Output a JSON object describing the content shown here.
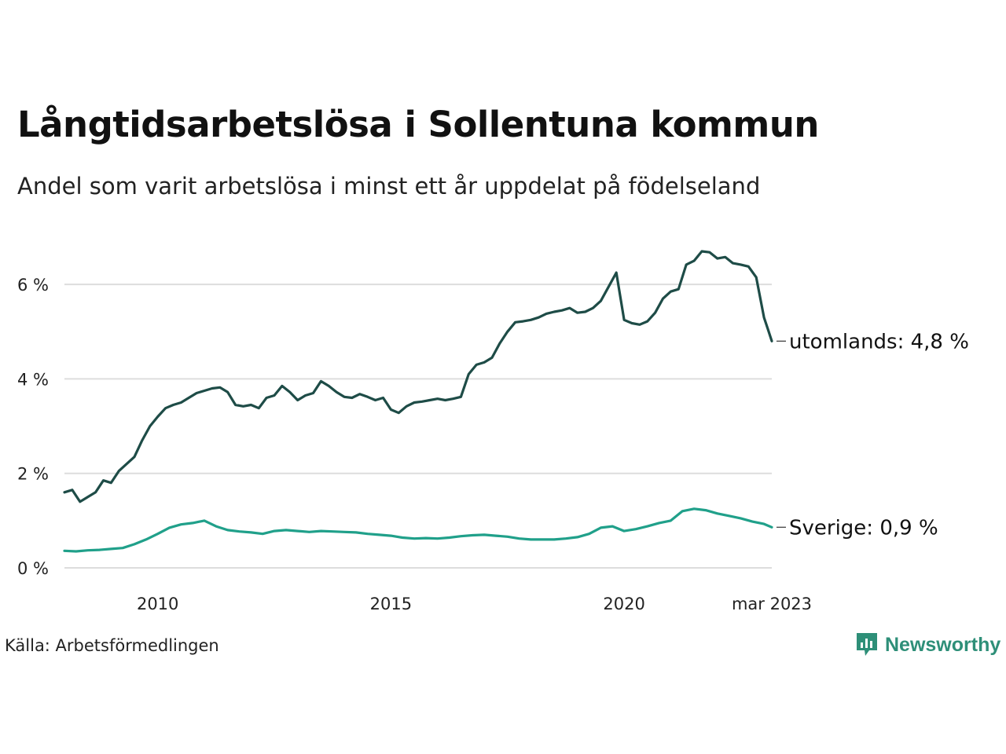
{
  "title": "Långtidsarbetslösa i Sollentuna kommun",
  "subtitle": "Andel som varit arbetslösa i minst ett år uppdelat på födelseland",
  "source": "Källa: Arbetsförmedlingen",
  "brand": {
    "name": "Newsworthy",
    "icon": "newsworthy-logo-icon",
    "color": "#2e8f78"
  },
  "chart_data": {
    "type": "line",
    "title": "Långtidsarbetslösa i Sollentuna kommun",
    "subtitle": "Andel som varit arbetslösa i minst ett år uppdelat på födelseland",
    "xlabel": "",
    "ylabel": "",
    "xlim": [
      "2008-01",
      "2023-03"
    ],
    "ylim": [
      0,
      7
    ],
    "x_ticks": [
      {
        "label": "2010",
        "x": "2010-01"
      },
      {
        "label": "2015",
        "x": "2015-01"
      },
      {
        "label": "2020",
        "x": "2020-01"
      },
      {
        "label": "mar 2023",
        "x": "2023-03"
      }
    ],
    "y_ticks": [
      {
        "label": "0 %",
        "value": 0
      },
      {
        "label": "2 %",
        "value": 2
      },
      {
        "label": "4 %",
        "value": 4
      },
      {
        "label": "6 %",
        "value": 6
      }
    ],
    "grid": true,
    "legend": "none",
    "series": [
      {
        "key": "utomlands",
        "end_label": "utomlands: 4,8 %",
        "color": "#1e4c47",
        "points": [
          [
            "2008-01",
            1.6
          ],
          [
            "2008-03",
            1.65
          ],
          [
            "2008-05",
            1.4
          ],
          [
            "2008-07",
            1.5
          ],
          [
            "2008-09",
            1.6
          ],
          [
            "2008-11",
            1.85
          ],
          [
            "2009-01",
            1.8
          ],
          [
            "2009-03",
            2.05
          ],
          [
            "2009-05",
            2.2
          ],
          [
            "2009-07",
            2.35
          ],
          [
            "2009-09",
            2.7
          ],
          [
            "2009-11",
            3.0
          ],
          [
            "2010-01",
            3.2
          ],
          [
            "2010-03",
            3.38
          ],
          [
            "2010-05",
            3.45
          ],
          [
            "2010-07",
            3.5
          ],
          [
            "2010-09",
            3.6
          ],
          [
            "2010-11",
            3.7
          ],
          [
            "2011-01",
            3.75
          ],
          [
            "2011-03",
            3.8
          ],
          [
            "2011-05",
            3.82
          ],
          [
            "2011-07",
            3.72
          ],
          [
            "2011-09",
            3.45
          ],
          [
            "2011-11",
            3.42
          ],
          [
            "2012-01",
            3.45
          ],
          [
            "2012-03",
            3.38
          ],
          [
            "2012-05",
            3.6
          ],
          [
            "2012-07",
            3.65
          ],
          [
            "2012-09",
            3.85
          ],
          [
            "2012-11",
            3.72
          ],
          [
            "2013-01",
            3.55
          ],
          [
            "2013-03",
            3.65
          ],
          [
            "2013-05",
            3.7
          ],
          [
            "2013-07",
            3.95
          ],
          [
            "2013-09",
            3.85
          ],
          [
            "2013-11",
            3.72
          ],
          [
            "2014-01",
            3.62
          ],
          [
            "2014-03",
            3.6
          ],
          [
            "2014-05",
            3.68
          ],
          [
            "2014-07",
            3.62
          ],
          [
            "2014-09",
            3.55
          ],
          [
            "2014-11",
            3.6
          ],
          [
            "2015-01",
            3.35
          ],
          [
            "2015-03",
            3.28
          ],
          [
            "2015-05",
            3.42
          ],
          [
            "2015-07",
            3.5
          ],
          [
            "2015-09",
            3.52
          ],
          [
            "2015-11",
            3.55
          ],
          [
            "2016-01",
            3.58
          ],
          [
            "2016-03",
            3.55
          ],
          [
            "2016-05",
            3.58
          ],
          [
            "2016-07",
            3.62
          ],
          [
            "2016-09",
            4.1
          ],
          [
            "2016-11",
            4.3
          ],
          [
            "2017-01",
            4.35
          ],
          [
            "2017-03",
            4.45
          ],
          [
            "2017-05",
            4.75
          ],
          [
            "2017-07",
            5.0
          ],
          [
            "2017-09",
            5.2
          ],
          [
            "2017-11",
            5.22
          ],
          [
            "2018-01",
            5.25
          ],
          [
            "2018-03",
            5.3
          ],
          [
            "2018-05",
            5.38
          ],
          [
            "2018-07",
            5.42
          ],
          [
            "2018-09",
            5.45
          ],
          [
            "2018-11",
            5.5
          ],
          [
            "2019-01",
            5.4
          ],
          [
            "2019-03",
            5.42
          ],
          [
            "2019-05",
            5.5
          ],
          [
            "2019-07",
            5.65
          ],
          [
            "2019-09",
            5.95
          ],
          [
            "2019-11",
            6.25
          ],
          [
            "2020-01",
            5.25
          ],
          [
            "2020-03",
            5.18
          ],
          [
            "2020-05",
            5.15
          ],
          [
            "2020-07",
            5.22
          ],
          [
            "2020-09",
            5.4
          ],
          [
            "2020-11",
            5.7
          ],
          [
            "2021-01",
            5.85
          ],
          [
            "2021-03",
            5.9
          ],
          [
            "2021-05",
            6.42
          ],
          [
            "2021-07",
            6.5
          ],
          [
            "2021-09",
            6.7
          ],
          [
            "2021-11",
            6.68
          ],
          [
            "2022-01",
            6.55
          ],
          [
            "2022-03",
            6.58
          ],
          [
            "2022-05",
            6.45
          ],
          [
            "2022-07",
            6.42
          ],
          [
            "2022-09",
            6.38
          ],
          [
            "2022-11",
            6.15
          ],
          [
            "2023-01",
            5.3
          ],
          [
            "2023-02",
            5.05
          ],
          [
            "2023-03",
            4.8
          ]
        ]
      },
      {
        "key": "Sverige",
        "end_label": "Sverige: 0,9 %",
        "color": "#20a08a",
        "points": [
          [
            "2008-01",
            0.36
          ],
          [
            "2008-04",
            0.35
          ],
          [
            "2008-07",
            0.37
          ],
          [
            "2008-10",
            0.38
          ],
          [
            "2009-01",
            0.4
          ],
          [
            "2009-04",
            0.42
          ],
          [
            "2009-07",
            0.5
          ],
          [
            "2009-10",
            0.6
          ],
          [
            "2010-01",
            0.72
          ],
          [
            "2010-04",
            0.85
          ],
          [
            "2010-07",
            0.92
          ],
          [
            "2010-10",
            0.95
          ],
          [
            "2011-01",
            1.0
          ],
          [
            "2011-04",
            0.88
          ],
          [
            "2011-07",
            0.8
          ],
          [
            "2011-10",
            0.77
          ],
          [
            "2012-01",
            0.75
          ],
          [
            "2012-04",
            0.72
          ],
          [
            "2012-07",
            0.78
          ],
          [
            "2012-10",
            0.8
          ],
          [
            "2013-01",
            0.78
          ],
          [
            "2013-04",
            0.76
          ],
          [
            "2013-07",
            0.78
          ],
          [
            "2013-10",
            0.77
          ],
          [
            "2014-01",
            0.76
          ],
          [
            "2014-04",
            0.75
          ],
          [
            "2014-07",
            0.72
          ],
          [
            "2014-10",
            0.7
          ],
          [
            "2015-01",
            0.68
          ],
          [
            "2015-04",
            0.64
          ],
          [
            "2015-07",
            0.62
          ],
          [
            "2015-10",
            0.63
          ],
          [
            "2016-01",
            0.62
          ],
          [
            "2016-04",
            0.64
          ],
          [
            "2016-07",
            0.67
          ],
          [
            "2016-10",
            0.69
          ],
          [
            "2017-01",
            0.7
          ],
          [
            "2017-04",
            0.68
          ],
          [
            "2017-07",
            0.66
          ],
          [
            "2017-10",
            0.62
          ],
          [
            "2018-01",
            0.6
          ],
          [
            "2018-04",
            0.6
          ],
          [
            "2018-07",
            0.6
          ],
          [
            "2018-10",
            0.62
          ],
          [
            "2019-01",
            0.65
          ],
          [
            "2019-04",
            0.72
          ],
          [
            "2019-07",
            0.85
          ],
          [
            "2019-10",
            0.88
          ],
          [
            "2020-01",
            0.78
          ],
          [
            "2020-04",
            0.82
          ],
          [
            "2020-07",
            0.88
          ],
          [
            "2020-10",
            0.95
          ],
          [
            "2021-01",
            1.0
          ],
          [
            "2021-04",
            1.2
          ],
          [
            "2021-07",
            1.25
          ],
          [
            "2021-10",
            1.22
          ],
          [
            "2022-01",
            1.15
          ],
          [
            "2022-04",
            1.1
          ],
          [
            "2022-07",
            1.05
          ],
          [
            "2022-10",
            0.98
          ],
          [
            "2023-01",
            0.93
          ],
          [
            "2023-03",
            0.86
          ]
        ]
      }
    ]
  }
}
